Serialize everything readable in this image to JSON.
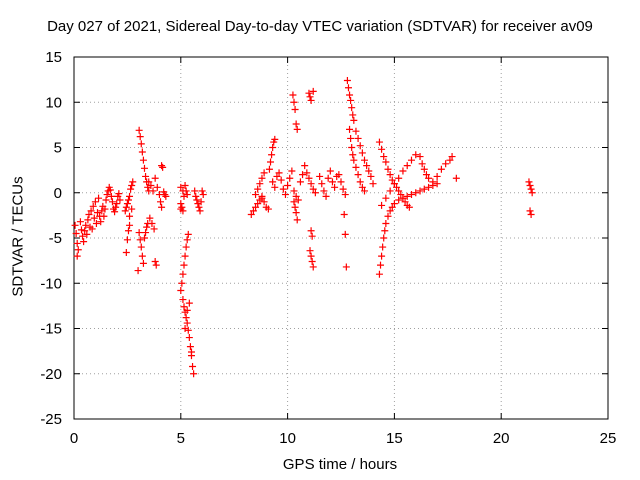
{
  "chart_data": {
    "type": "scatter",
    "title": "Day 027 of 2021, Sidereal Day-to-day VTEC variation (SDTVAR) for receiver av09",
    "xlabel": "GPS time / hours",
    "ylabel": "SDTVAR / TECUs",
    "xlim": [
      0,
      25
    ],
    "ylim": [
      -25,
      15
    ],
    "xticks": [
      0,
      5,
      10,
      15,
      20,
      25
    ],
    "yticks": [
      15,
      10,
      5,
      0,
      -5,
      -10,
      -15,
      -20,
      -25
    ],
    "grid": true,
    "marker": "+",
    "color": "#ff0000",
    "series": [
      {
        "name": "SDTVAR",
        "points": [
          [
            0.05,
            -3.6
          ],
          [
            0.1,
            -4.5
          ],
          [
            0.15,
            -5.6
          ],
          [
            0.2,
            -6.3
          ],
          [
            0.15,
            -7.0
          ],
          [
            0.3,
            -3.2
          ],
          [
            0.35,
            -4.1
          ],
          [
            0.4,
            -4.8
          ],
          [
            0.45,
            -5.4
          ],
          [
            0.5,
            -4.2
          ],
          [
            0.55,
            -3.6
          ],
          [
            0.6,
            -4.6
          ],
          [
            0.65,
            -3.0
          ],
          [
            0.7,
            -2.4
          ],
          [
            0.75,
            -3.8
          ],
          [
            0.8,
            -2.0
          ],
          [
            0.85,
            -4.0
          ],
          [
            0.9,
            -1.5
          ],
          [
            0.95,
            -2.8
          ],
          [
            1.0,
            -1.0
          ],
          [
            1.05,
            -3.4
          ],
          [
            1.1,
            -2.2
          ],
          [
            1.15,
            -0.6
          ],
          [
            1.2,
            -2.6
          ],
          [
            1.25,
            -3.2
          ],
          [
            1.3,
            -2.0
          ],
          [
            1.35,
            -1.5
          ],
          [
            1.4,
            -2.6
          ],
          [
            1.45,
            -1.8
          ],
          [
            1.5,
            -0.8
          ],
          [
            1.55,
            -0.2
          ],
          [
            1.6,
            0.2
          ],
          [
            1.65,
            0.6
          ],
          [
            1.7,
            0.3
          ],
          [
            1.75,
            -0.4
          ],
          [
            1.8,
            -1.0
          ],
          [
            1.85,
            -1.8
          ],
          [
            1.9,
            -2.1
          ],
          [
            1.95,
            -1.6
          ],
          [
            2.0,
            -1.2
          ],
          [
            2.05,
            -0.4
          ],
          [
            2.1,
            -0.1
          ],
          [
            2.15,
            -0.8
          ],
          [
            2.4,
            -2.0
          ],
          [
            2.45,
            -1.6
          ],
          [
            2.5,
            -1.2
          ],
          [
            2.55,
            -0.8
          ],
          [
            2.6,
            -0.4
          ],
          [
            2.65,
            0.4
          ],
          [
            2.7,
            0.8
          ],
          [
            2.75,
            1.2
          ],
          [
            2.6,
            -3.6
          ],
          [
            2.55,
            -4.2
          ],
          [
            2.5,
            -5.2
          ],
          [
            2.45,
            -6.6
          ],
          [
            2.6,
            -2.6
          ],
          [
            2.7,
            -1.8
          ],
          [
            3.05,
            6.9
          ],
          [
            3.1,
            6.2
          ],
          [
            3.15,
            5.4
          ],
          [
            3.2,
            4.5
          ],
          [
            3.25,
            3.6
          ],
          [
            3.3,
            2.7
          ],
          [
            3.35,
            1.8
          ],
          [
            3.4,
            1.2
          ],
          [
            3.45,
            0.6
          ],
          [
            3.5,
            0.2
          ],
          [
            3.05,
            -4.4
          ],
          [
            3.1,
            -5.2
          ],
          [
            3.15,
            -6.0
          ],
          [
            3.2,
            -7.0
          ],
          [
            3.25,
            -7.8
          ],
          [
            3.0,
            -8.6
          ],
          [
            3.3,
            -5.0
          ],
          [
            3.35,
            -4.4
          ],
          [
            3.4,
            -3.8
          ],
          [
            3.45,
            -3.4
          ],
          [
            3.5,
            1.2
          ],
          [
            3.6,
            0.8
          ],
          [
            3.7,
            0.2
          ],
          [
            3.8,
            1.6
          ],
          [
            3.9,
            0.6
          ],
          [
            4.0,
            -0.2
          ],
          [
            4.05,
            -1.0
          ],
          [
            4.1,
            -1.6
          ],
          [
            3.55,
            -2.8
          ],
          [
            3.65,
            -3.4
          ],
          [
            3.75,
            -4.0
          ],
          [
            3.8,
            -7.6
          ],
          [
            3.85,
            -8.0
          ],
          [
            4.1,
            3.0
          ],
          [
            4.15,
            2.8
          ],
          [
            4.2,
            0.1
          ],
          [
            4.25,
            -0.2
          ],
          [
            4.3,
            -0.4
          ],
          [
            5.0,
            0.6
          ],
          [
            5.1,
            0.2
          ],
          [
            5.15,
            -0.4
          ],
          [
            5.0,
            -1.2
          ],
          [
            5.05,
            -1.6
          ],
          [
            5.1,
            -2.0
          ],
          [
            5.0,
            -1.8
          ],
          [
            5.2,
            0.8
          ],
          [
            5.25,
            0.2
          ],
          [
            5.3,
            -0.2
          ],
          [
            5.0,
            -10.8
          ],
          [
            5.05,
            -10.0
          ],
          [
            5.1,
            -9.0
          ],
          [
            5.15,
            -8.0
          ],
          [
            5.2,
            -7.0
          ],
          [
            5.25,
            -6.0
          ],
          [
            5.3,
            -5.2
          ],
          [
            5.35,
            -4.6
          ],
          [
            5.1,
            -11.8
          ],
          [
            5.15,
            -12.6
          ],
          [
            5.2,
            -13.2
          ],
          [
            5.25,
            -13.8
          ],
          [
            5.3,
            -14.4
          ],
          [
            5.35,
            -15.2
          ],
          [
            5.4,
            -16.0
          ],
          [
            5.45,
            -17.0
          ],
          [
            5.5,
            -18.0
          ],
          [
            5.55,
            -19.2
          ],
          [
            5.6,
            -20.0
          ],
          [
            5.2,
            -15.0
          ],
          [
            5.3,
            -13.0
          ],
          [
            5.4,
            -12.2
          ],
          [
            5.5,
            -17.6
          ],
          [
            5.65,
            0.2
          ],
          [
            5.7,
            -0.4
          ],
          [
            5.75,
            -0.8
          ],
          [
            5.8,
            -1.2
          ],
          [
            5.85,
            -1.6
          ],
          [
            5.9,
            -2.0
          ],
          [
            5.95,
            -1.0
          ],
          [
            6.0,
            0.2
          ],
          [
            6.05,
            -0.2
          ],
          [
            8.3,
            -2.4
          ],
          [
            8.4,
            -2.0
          ],
          [
            8.5,
            -1.6
          ],
          [
            8.6,
            -1.2
          ],
          [
            8.7,
            -0.8
          ],
          [
            8.8,
            -0.4
          ],
          [
            8.5,
            -0.2
          ],
          [
            8.6,
            0.4
          ],
          [
            8.7,
            1.0
          ],
          [
            8.8,
            1.6
          ],
          [
            8.9,
            2.2
          ],
          [
            8.8,
            -0.6
          ],
          [
            8.9,
            -1.0
          ],
          [
            9.0,
            -1.6
          ],
          [
            9.1,
            -1.8
          ],
          [
            9.15,
            2.6
          ],
          [
            9.2,
            3.4
          ],
          [
            9.25,
            4.2
          ],
          [
            9.3,
            5.0
          ],
          [
            9.35,
            5.6
          ],
          [
            9.4,
            5.9
          ],
          [
            9.3,
            1.2
          ],
          [
            9.4,
            0.6
          ],
          [
            9.5,
            1.8
          ],
          [
            9.6,
            2.2
          ],
          [
            9.7,
            1.4
          ],
          [
            9.8,
            0.4
          ],
          [
            9.9,
            -0.2
          ],
          [
            10.0,
            0.8
          ],
          [
            10.1,
            1.6
          ],
          [
            10.2,
            2.4
          ],
          [
            10.3,
            0.2
          ],
          [
            10.4,
            -0.4
          ],
          [
            10.5,
            -0.8
          ],
          [
            10.6,
            1.2
          ],
          [
            10.7,
            2.0
          ],
          [
            10.25,
            10.8
          ],
          [
            10.3,
            10.0
          ],
          [
            10.35,
            9.2
          ],
          [
            10.4,
            7.6
          ],
          [
            10.45,
            7.0
          ],
          [
            10.3,
            -1.0
          ],
          [
            10.35,
            -1.6
          ],
          [
            10.4,
            -2.2
          ],
          [
            10.45,
            -3.0
          ],
          [
            10.8,
            3.0
          ],
          [
            10.9,
            2.2
          ],
          [
            11.0,
            1.6
          ],
          [
            11.1,
            1.0
          ],
          [
            11.2,
            0.4
          ],
          [
            11.3,
            0.0
          ],
          [
            11.0,
            11.0
          ],
          [
            11.05,
            10.6
          ],
          [
            11.1,
            10.2
          ],
          [
            11.2,
            11.2
          ],
          [
            11.1,
            -4.2
          ],
          [
            11.15,
            -4.8
          ],
          [
            11.05,
            -6.4
          ],
          [
            11.1,
            -7.0
          ],
          [
            11.15,
            -7.6
          ],
          [
            11.2,
            -8.2
          ],
          [
            11.5,
            1.8
          ],
          [
            11.6,
            1.0
          ],
          [
            11.7,
            0.2
          ],
          [
            11.8,
            -0.4
          ],
          [
            11.9,
            1.6
          ],
          [
            12.0,
            2.4
          ],
          [
            12.1,
            1.2
          ],
          [
            12.2,
            0.6
          ],
          [
            12.3,
            1.8
          ],
          [
            12.4,
            2.0
          ],
          [
            12.5,
            1.2
          ],
          [
            12.6,
            0.4
          ],
          [
            12.7,
            -0.2
          ],
          [
            12.65,
            -2.4
          ],
          [
            12.7,
            -4.6
          ],
          [
            12.75,
            -8.2
          ],
          [
            12.8,
            12.4
          ],
          [
            12.85,
            11.6
          ],
          [
            12.9,
            10.8
          ],
          [
            12.95,
            10.2
          ],
          [
            13.0,
            9.4
          ],
          [
            13.05,
            8.6
          ],
          [
            13.1,
            8.0
          ],
          [
            12.9,
            7.0
          ],
          [
            12.95,
            6.0
          ],
          [
            13.0,
            5.0
          ],
          [
            13.05,
            4.2
          ],
          [
            13.1,
            3.6
          ],
          [
            13.2,
            2.8
          ],
          [
            13.3,
            2.0
          ],
          [
            13.4,
            1.2
          ],
          [
            13.5,
            0.6
          ],
          [
            13.6,
            0.2
          ],
          [
            13.2,
            6.8
          ],
          [
            13.3,
            6.0
          ],
          [
            13.4,
            5.2
          ],
          [
            13.5,
            4.4
          ],
          [
            13.6,
            3.6
          ],
          [
            13.7,
            3.0
          ],
          [
            13.8,
            2.4
          ],
          [
            13.9,
            1.8
          ],
          [
            14.0,
            1.0
          ],
          [
            14.3,
            5.6
          ],
          [
            14.4,
            4.8
          ],
          [
            14.5,
            4.0
          ],
          [
            14.6,
            3.4
          ],
          [
            14.7,
            2.6
          ],
          [
            14.8,
            2.0
          ],
          [
            14.9,
            1.4
          ],
          [
            15.0,
            1.0
          ],
          [
            15.1,
            0.6
          ],
          [
            15.2,
            0.2
          ],
          [
            15.3,
            -0.2
          ],
          [
            15.4,
            -0.6
          ],
          [
            15.5,
            -1.0
          ],
          [
            15.6,
            -1.4
          ],
          [
            15.7,
            -1.6
          ],
          [
            14.3,
            -9.0
          ],
          [
            14.35,
            -8.0
          ],
          [
            14.4,
            -7.0
          ],
          [
            14.45,
            -6.0
          ],
          [
            14.5,
            -5.0
          ],
          [
            14.55,
            -4.2
          ],
          [
            14.6,
            -3.4
          ],
          [
            14.7,
            -2.6
          ],
          [
            14.8,
            -2.0
          ],
          [
            14.9,
            -1.6
          ],
          [
            15.0,
            -1.2
          ],
          [
            15.2,
            -0.8
          ],
          [
            15.4,
            -0.6
          ],
          [
            15.6,
            -0.4
          ],
          [
            15.8,
            -0.2
          ],
          [
            16.0,
            0.0
          ],
          [
            16.2,
            0.2
          ],
          [
            16.4,
            0.4
          ],
          [
            16.6,
            0.6
          ],
          [
            16.8,
            0.8
          ],
          [
            17.0,
            1.0
          ],
          [
            14.4,
            -1.4
          ],
          [
            14.6,
            -0.6
          ],
          [
            14.8,
            0.2
          ],
          [
            15.0,
            1.0
          ],
          [
            15.2,
            1.6
          ],
          [
            15.4,
            2.4
          ],
          [
            15.6,
            3.0
          ],
          [
            15.8,
            3.6
          ],
          [
            16.0,
            4.2
          ],
          [
            16.2,
            4.0
          ],
          [
            16.3,
            3.2
          ],
          [
            16.4,
            2.6
          ],
          [
            16.5,
            2.0
          ],
          [
            16.6,
            1.6
          ],
          [
            16.8,
            1.2
          ],
          [
            17.0,
            1.8
          ],
          [
            17.2,
            2.6
          ],
          [
            17.4,
            3.2
          ],
          [
            17.6,
            3.6
          ],
          [
            17.7,
            4.0
          ],
          [
            17.9,
            1.6
          ],
          [
            21.3,
            1.2
          ],
          [
            21.35,
            0.8
          ],
          [
            21.4,
            0.4
          ],
          [
            21.45,
            0.0
          ],
          [
            21.35,
            -2.0
          ],
          [
            21.4,
            -2.4
          ]
        ]
      }
    ]
  }
}
